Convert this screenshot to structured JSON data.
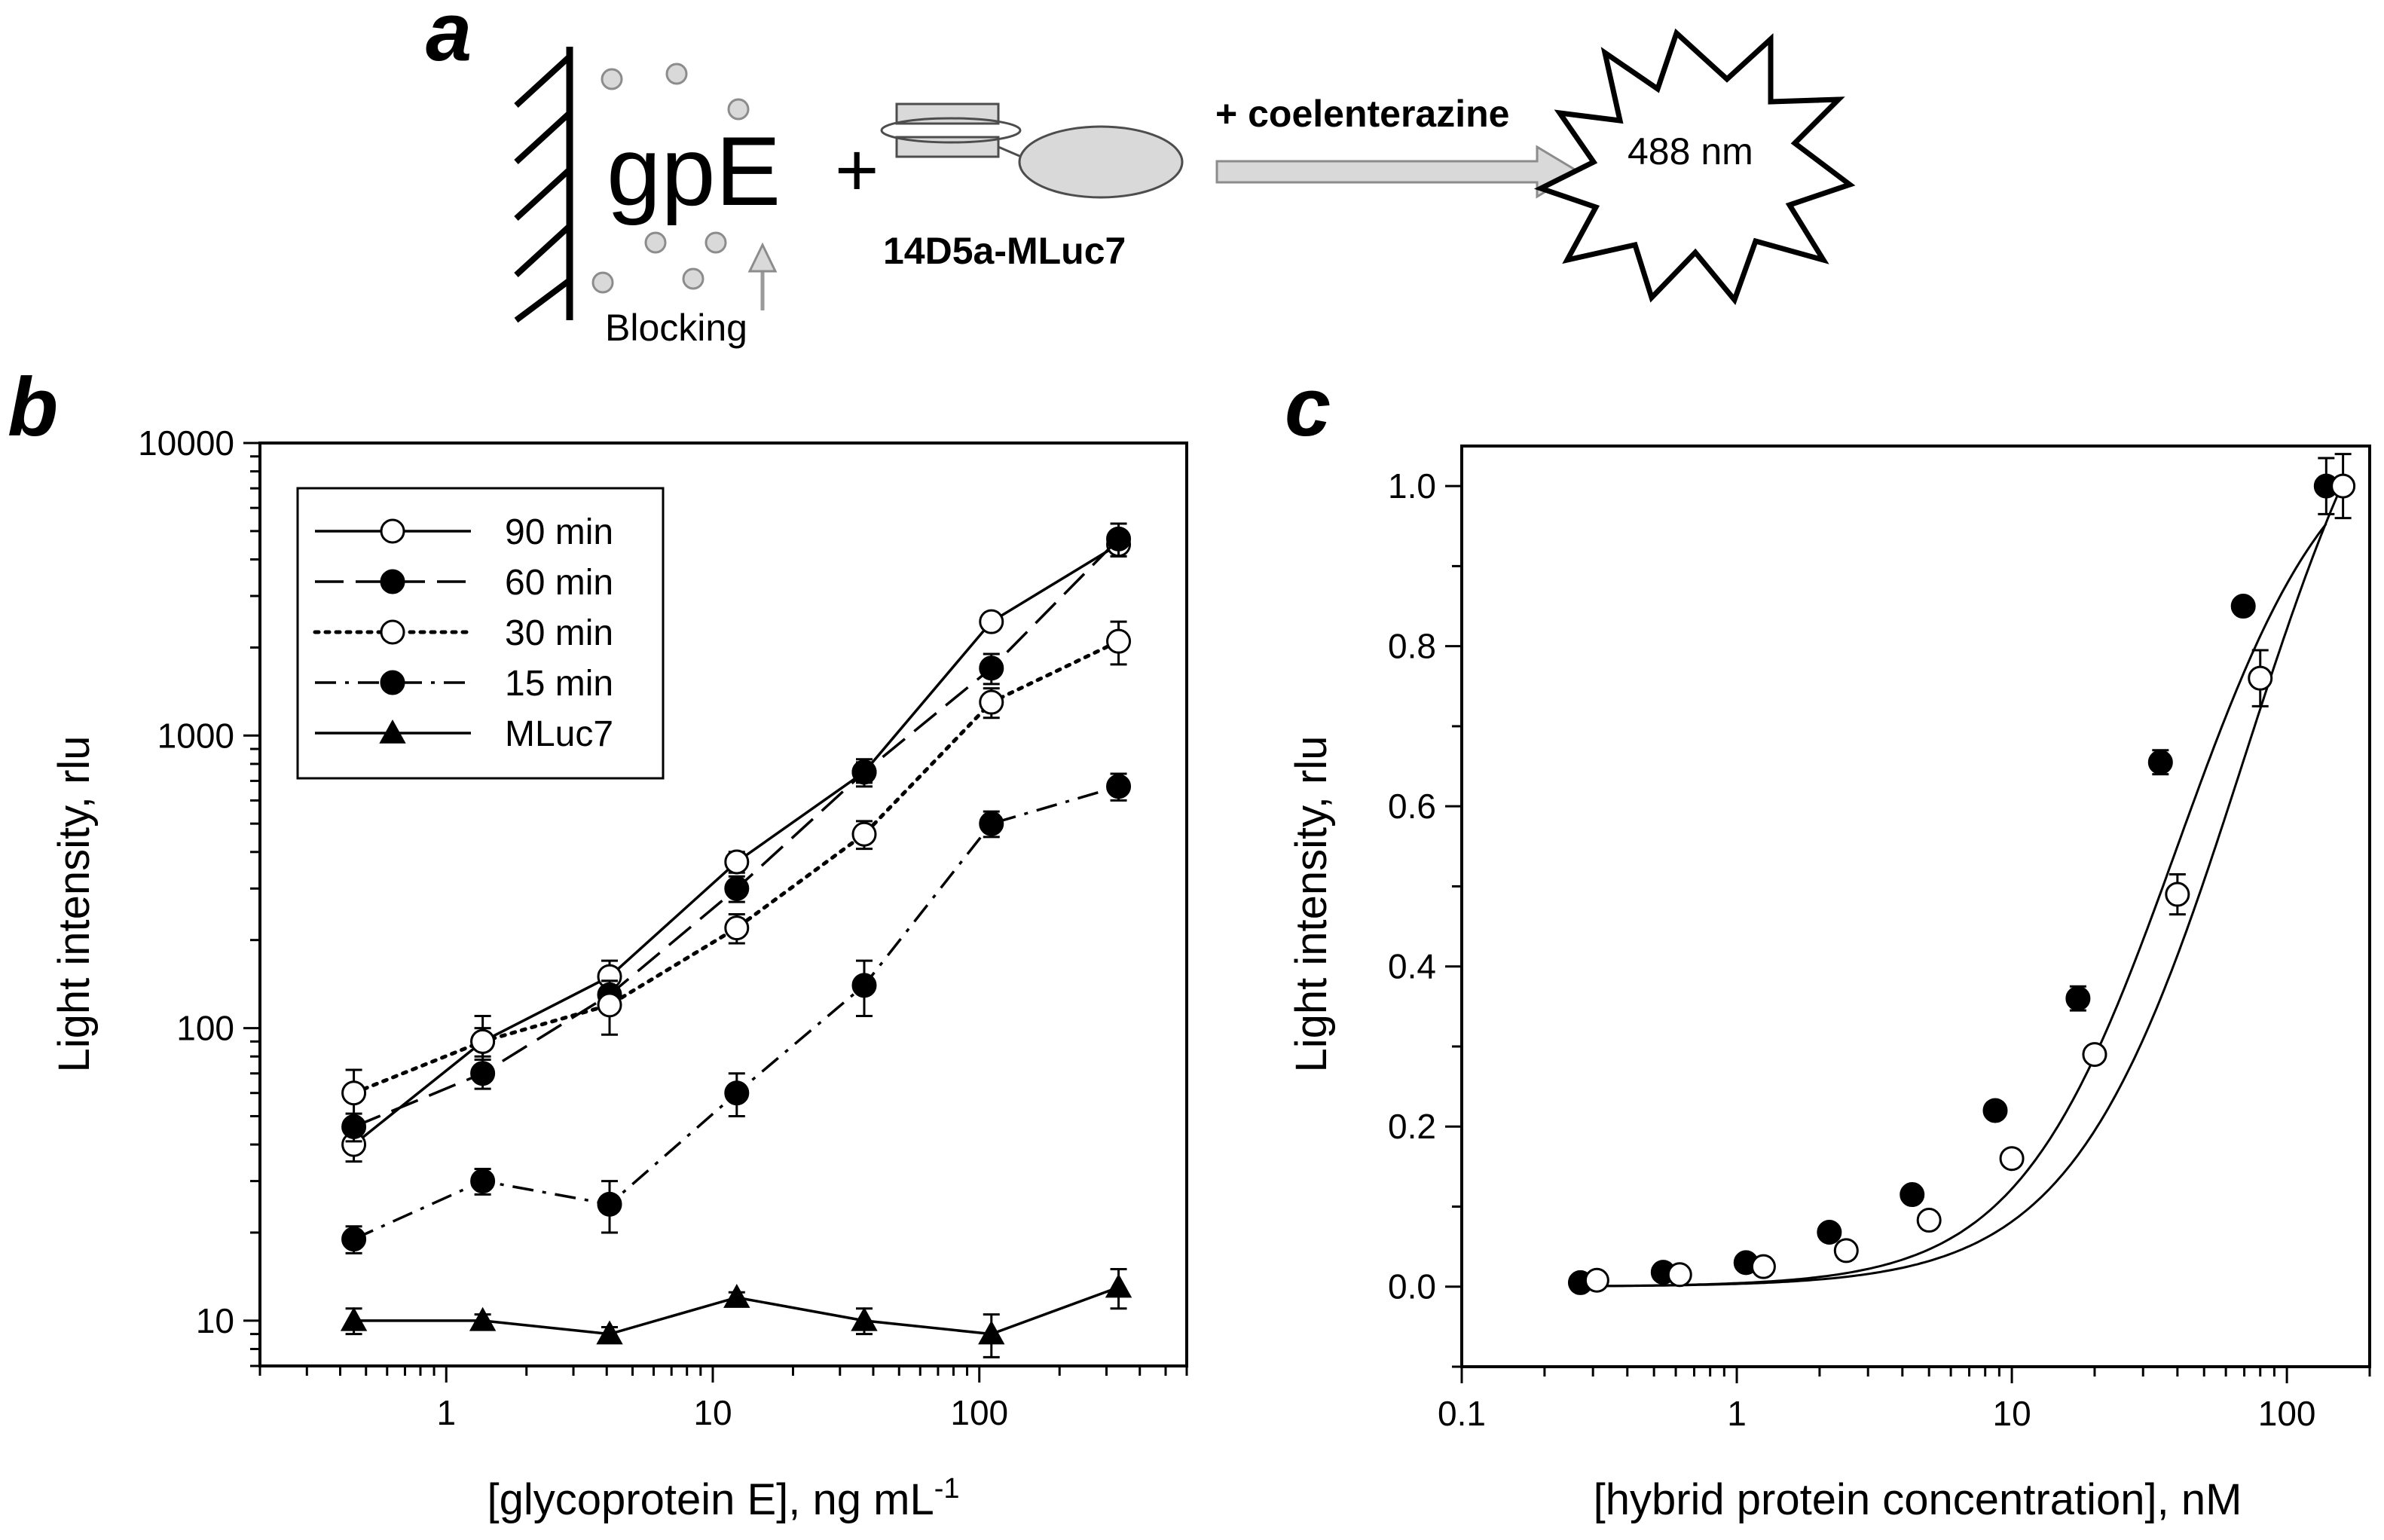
{
  "panel_a": {
    "letter": "a",
    "antigen_label": "gpE",
    "plus_sign": "+",
    "blocking_label": "Blocking",
    "conjugate_label": "14D5a-MLuc7",
    "substrate_label": "+ coelenterazine",
    "emission_label": "488 nm",
    "colors": {
      "gray_fill": "#d9d9d9",
      "gray_stroke": "#7f7f7f"
    }
  },
  "chart_data": [
    {
      "panel": "b",
      "type": "line",
      "xscale": "log",
      "yscale": "log",
      "xlim": [
        0.2,
        600
      ],
      "ylim": [
        7,
        10000
      ],
      "xlabel": "[glycoprotein E], ng mL",
      "xlabel_sup": "-1",
      "ylabel": "Light intensity, rlu",
      "xticks": [
        {
          "value": 1,
          "label": "1"
        },
        {
          "value": 10,
          "label": "10"
        },
        {
          "value": 100,
          "label": "100"
        }
      ],
      "yticks": [
        {
          "value": 10,
          "label": "10"
        },
        {
          "value": 100,
          "label": "100"
        },
        {
          "value": 1000,
          "label": "1000"
        },
        {
          "value": 10000,
          "label": "10000"
        }
      ],
      "legend_position": "top-left",
      "x": [
        0.45,
        1.37,
        4.1,
        12.3,
        37,
        111,
        333
      ],
      "series": [
        {
          "name": "90 min",
          "marker": "open-circle",
          "dash": "solid",
          "values": [
            40,
            90,
            150,
            370,
            750,
            2450,
            4500
          ],
          "errors": [
            5,
            10,
            20,
            30,
            60,
            150,
            400
          ]
        },
        {
          "name": "60 min",
          "marker": "filled-circle",
          "dash": "long-dash",
          "values": [
            46,
            70,
            130,
            300,
            750,
            1700,
            4700
          ],
          "errors": [
            5,
            8,
            15,
            30,
            80,
            200,
            600
          ]
        },
        {
          "name": "30 min",
          "marker": "open-circle",
          "dash": "dotted",
          "values": [
            60,
            90,
            120,
            220,
            460,
            1300,
            2100
          ],
          "errors": [
            12,
            20,
            25,
            25,
            50,
            150,
            350
          ]
        },
        {
          "name": "15 min",
          "marker": "filled-circle",
          "dash": "dash-dot",
          "values": [
            19,
            30,
            25,
            60,
            140,
            500,
            670
          ],
          "errors": [
            2,
            3,
            5,
            10,
            30,
            50,
            70
          ]
        },
        {
          "name": "MLuc7",
          "marker": "filled-triangle",
          "dash": "solid",
          "values": [
            10,
            10,
            9,
            12,
            10,
            9,
            13
          ],
          "errors": [
            1,
            0.5,
            0.5,
            0.5,
            1,
            1.5,
            2
          ]
        }
      ]
    },
    {
      "panel": "c",
      "type": "scatter",
      "xscale": "log",
      "yscale": "linear",
      "xlim": [
        0.1,
        200
      ],
      "ylim": [
        -0.1,
        1.05
      ],
      "xlabel": "[hybrid protein concentration], nM",
      "ylabel": "Light intensity, rlu",
      "xticks": [
        {
          "value": 0.1,
          "label": "0.1"
        },
        {
          "value": 1,
          "label": "1"
        },
        {
          "value": 10,
          "label": "10"
        },
        {
          "value": 100,
          "label": "100"
        }
      ],
      "yticks": [
        {
          "value": 0.0,
          "label": "0.0"
        },
        {
          "value": 0.2,
          "label": "0.2"
        },
        {
          "value": 0.4,
          "label": "0.4"
        },
        {
          "value": 0.6,
          "label": "0.6"
        },
        {
          "value": 0.8,
          "label": "0.8"
        },
        {
          "value": 1.0,
          "label": "1.0"
        }
      ],
      "series": [
        {
          "marker": "filled-circle",
          "x": [
            0.27,
            0.54,
            1.08,
            2.17,
            4.34,
            8.7,
            17.4,
            34.7,
            69.4,
            139
          ],
          "values": [
            0.005,
            0.018,
            0.03,
            0.068,
            0.115,
            0.22,
            0.36,
            0.655,
            0.85,
            1.0
          ],
          "errors": [
            0.003,
            0.004,
            0.004,
            0.006,
            0.008,
            0.01,
            0.015,
            0.015,
            0.01,
            0.035
          ],
          "fit": {
            "bottom": 0.0,
            "top": 1.1,
            "ec50": 40.0,
            "hill": 1.5
          }
        },
        {
          "marker": "open-circle",
          "x": [
            0.31,
            0.62,
            1.25,
            2.5,
            5,
            10,
            20,
            40,
            80,
            160
          ],
          "values": [
            0.008,
            0.015,
            0.025,
            0.045,
            0.083,
            0.16,
            0.29,
            0.49,
            0.76,
            1.0
          ],
          "errors": [
            0.003,
            0.004,
            0.004,
            0.005,
            0.006,
            0.008,
            0.01,
            0.025,
            0.035,
            0.04
          ],
          "fit": {
            "bottom": 0.0,
            "top": 1.32,
            "ec50": 70.0,
            "hill": 1.4
          }
        }
      ]
    }
  ]
}
